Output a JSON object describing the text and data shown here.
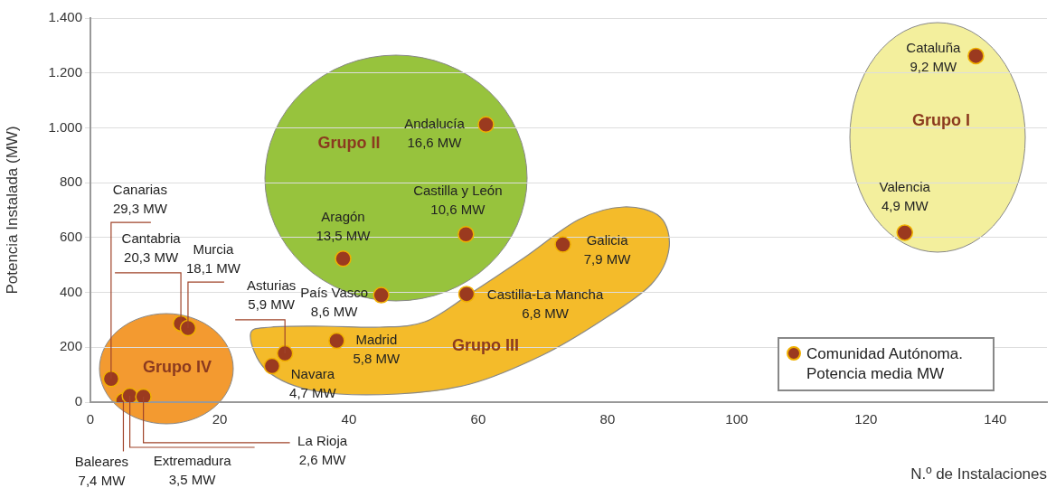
{
  "chart_data": {
    "type": "scatter",
    "xlabel": "N.º de Instalaciones",
    "ylabel": "Potencia Instalada (MW)",
    "xlim": [
      0,
      148
    ],
    "xticks": [
      0,
      20,
      40,
      60,
      80,
      100,
      120,
      140
    ],
    "ylim": [
      0,
      1400
    ],
    "yticks": [
      0,
      200,
      400,
      600,
      800,
      {
        "value": 1000,
        "label": "1.000"
      },
      {
        "value": 1200,
        "label": "1.200"
      },
      {
        "value": 1400,
        "label": "1.400"
      }
    ],
    "grid": "y",
    "legend": "bottom right",
    "marker": "circle",
    "series": [
      {
        "name": "Comunidad Autónoma. Potencia media MW",
        "color": "#9b3a1f",
        "x": [
          3.2,
          14,
          15.1,
          30.1,
          5.1,
          6.1,
          8.2,
          28.1,
          38.1,
          45,
          39.1,
          58.1,
          61.2,
          73.1,
          58.2,
          137,
          126
        ],
        "values": [
          85,
          287,
          270,
          178,
          5,
          23,
          20,
          132,
          224,
          390,
          523,
          612,
          1012,
          575,
          394,
          1262,
          618
        ]
      }
    ],
    "annotations": [
      {
        "text": "Canarias\n29,3 MW",
        "x": 3.2,
        "y": 85
      },
      {
        "text": "Cantabria\n20,3 MW",
        "x": 14,
        "y": 287
      },
      {
        "text": "Murcia\n18,1 MW",
        "x": 15.1,
        "y": 270
      },
      {
        "text": "Asturias\n5,9 MW",
        "x": 30.1,
        "y": 178
      },
      {
        "text": "Baleares\n7,4 MW",
        "x": 5.1,
        "y": 5
      },
      {
        "text": "Extremadura\n3,5 MW",
        "x": 6.1,
        "y": 23
      },
      {
        "text": "La Rioja\n2,6 MW",
        "x": 8.2,
        "y": 20
      },
      {
        "text": "Navara\n4,7 MW",
        "x": 28.1,
        "y": 132
      },
      {
        "text": "Madrid\n5,8 MW",
        "x": 38.1,
        "y": 224
      },
      {
        "text": "País Vasco\n8,6 MW",
        "x": 45,
        "y": 390
      },
      {
        "text": "Aragón\n13,5 MW",
        "x": 39.1,
        "y": 523
      },
      {
        "text": "Castilla y León\n10,6 MW",
        "x": 58.1,
        "y": 612
      },
      {
        "text": "Andalucía\n16,6 MW",
        "x": 61.2,
        "y": 1012
      },
      {
        "text": "Galicia\n7,9 MW",
        "x": 73.1,
        "y": 575
      },
      {
        "text": "Castilla-La Mancha\n6,8 MW",
        "x": 58.2,
        "y": 394
      },
      {
        "text": "Cataluña\n9,2 MW",
        "x": 137,
        "y": 1262
      },
      {
        "text": "Valencia\n4,9 MW",
        "x": 126,
        "y": 618
      },
      "Grupo I",
      "Grupo II",
      "Grupo III",
      "Grupo IV"
    ]
  }
}
